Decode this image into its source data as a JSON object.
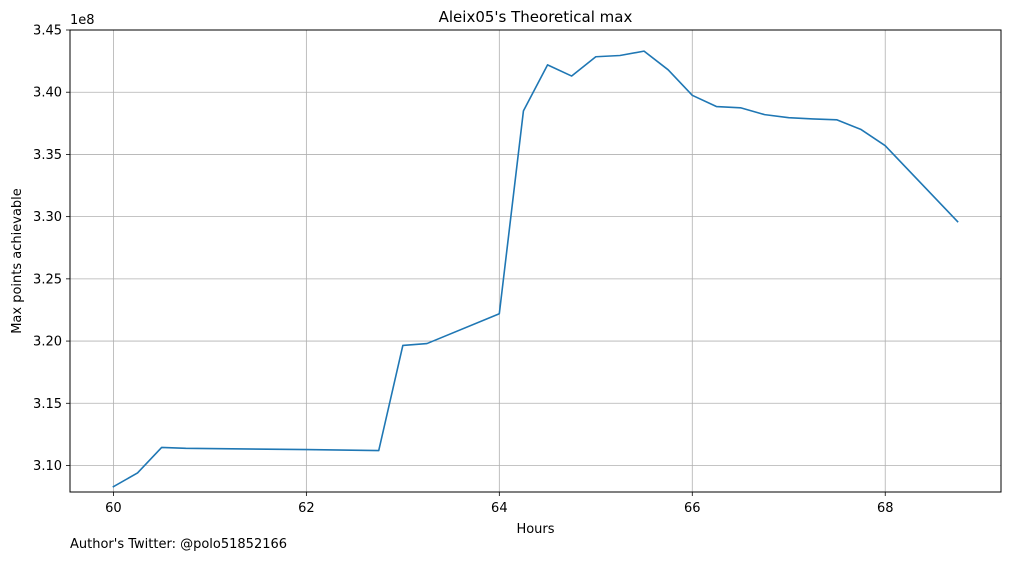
{
  "chart_data": {
    "type": "line",
    "title": "Aleix05's Theoretical max",
    "xlabel": "Hours",
    "ylabel": "Max points achievable",
    "y_offset_label": "1e8",
    "xlim": [
      59.55,
      69.2
    ],
    "ylim": [
      3.0787,
      3.45
    ],
    "xticks": [
      60,
      62,
      64,
      66,
      68
    ],
    "xtick_labels": [
      "60",
      "62",
      "64",
      "66",
      "68"
    ],
    "yticks": [
      3.1,
      3.15,
      3.2,
      3.25,
      3.3,
      3.35,
      3.4,
      3.45
    ],
    "ytick_labels": [
      "3.10",
      "3.15",
      "3.20",
      "3.25",
      "3.30",
      "3.35",
      "3.40",
      "3.45"
    ],
    "grid": true,
    "series": [
      {
        "color": "#1f77b4",
        "x": [
          60.0,
          60.25,
          60.5,
          60.75,
          62.0,
          62.75,
          63.0,
          63.25,
          64.0,
          64.25,
          64.5,
          64.75,
          65.0,
          65.25,
          65.5,
          65.75,
          66.0,
          66.25,
          66.5,
          66.75,
          67.0,
          67.25,
          67.5,
          67.75,
          68.0,
          68.75
        ],
        "y": [
          3.083,
          3.094,
          3.1145,
          3.1138,
          3.1128,
          3.112,
          3.1965,
          3.198,
          3.222,
          3.385,
          3.422,
          3.413,
          3.4285,
          3.4295,
          3.433,
          3.418,
          3.3975,
          3.3885,
          3.3875,
          3.382,
          3.3795,
          3.3785,
          3.3778,
          3.37,
          3.357,
          3.296
        ]
      }
    ]
  },
  "footer": {
    "note": "Author's Twitter: @polo51852166"
  }
}
